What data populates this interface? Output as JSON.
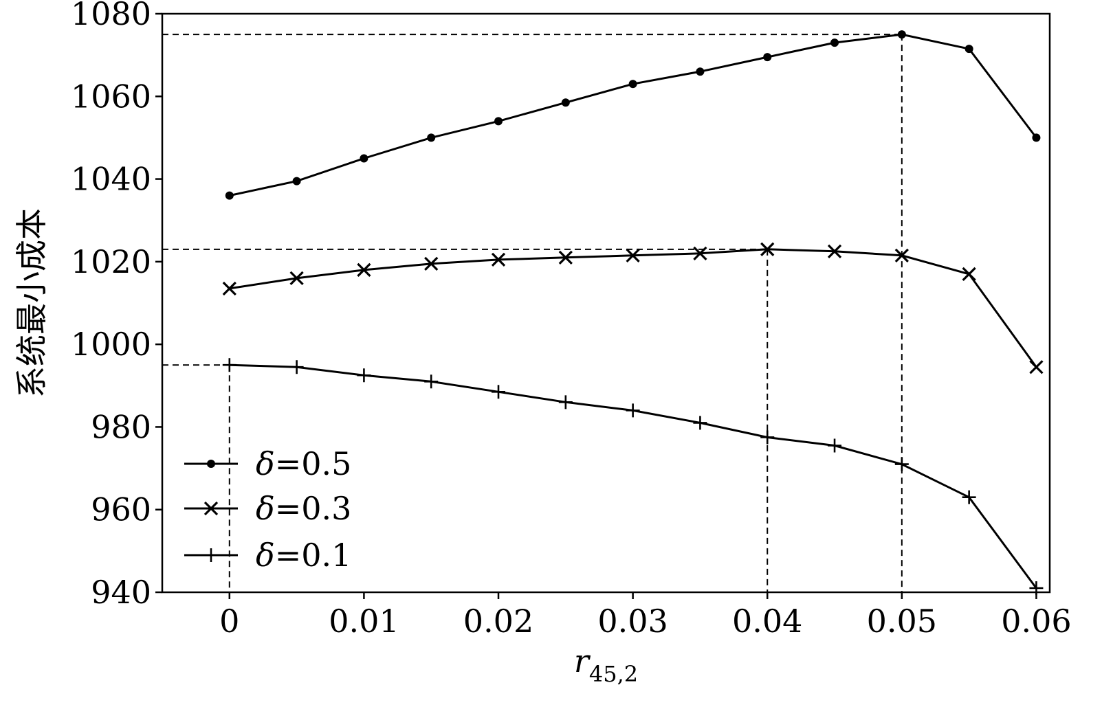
{
  "chart_data": {
    "type": "line",
    "title": "",
    "xlabel": "r",
    "xlabel_subscript": "45,2",
    "ylabel": "系统最小成本",
    "xlim": [
      -0.005,
      0.061
    ],
    "ylim": [
      940,
      1080
    ],
    "xticks": [
      0,
      0.01,
      0.02,
      0.03,
      0.04,
      0.05,
      0.06
    ],
    "xtick_labels": [
      "0",
      "0.01",
      "0.02",
      "0.03",
      "0.04",
      "0.05",
      "0.06"
    ],
    "yticks": [
      940,
      960,
      980,
      1000,
      1020,
      1040,
      1060,
      1080
    ],
    "ytick_labels": [
      "940",
      "960",
      "980",
      "1000",
      "1020",
      "1040",
      "1060",
      "1080"
    ],
    "grid": false,
    "legend_position": "lower-left",
    "x": [
      0,
      0.005,
      0.01,
      0.015,
      0.02,
      0.025,
      0.03,
      0.035,
      0.04,
      0.045,
      0.05,
      0.055,
      0.06
    ],
    "series": [
      {
        "name": "δ=0.5",
        "legend_symbol": "δ",
        "legend_value": "=0.5",
        "marker": "dot",
        "values": [
          1036,
          1039.5,
          1045,
          1050,
          1054,
          1058.5,
          1063,
          1066,
          1069.5,
          1073,
          1075,
          1071.5,
          1050
        ]
      },
      {
        "name": "δ=0.3",
        "legend_symbol": "δ",
        "legend_value": "=0.3",
        "marker": "x",
        "values": [
          1013.5,
          1016,
          1018,
          1019.5,
          1020.5,
          1021,
          1021.5,
          1022,
          1023,
          1022.5,
          1021.5,
          1017,
          994.5
        ]
      },
      {
        "name": "δ=0.1",
        "legend_symbol": "δ",
        "legend_value": "=0.1",
        "marker": "plus",
        "values": [
          995,
          994.5,
          992.5,
          991,
          988.5,
          986,
          984,
          981,
          977.5,
          975.5,
          971,
          963,
          941
        ]
      }
    ],
    "reference_lines": [
      {
        "x": 0.05,
        "y": 1075
      },
      {
        "x": 0.04,
        "y": 1023
      },
      {
        "x": 0,
        "y": 995
      }
    ],
    "colors": {
      "line": "#000000",
      "background": "#ffffff"
    }
  }
}
